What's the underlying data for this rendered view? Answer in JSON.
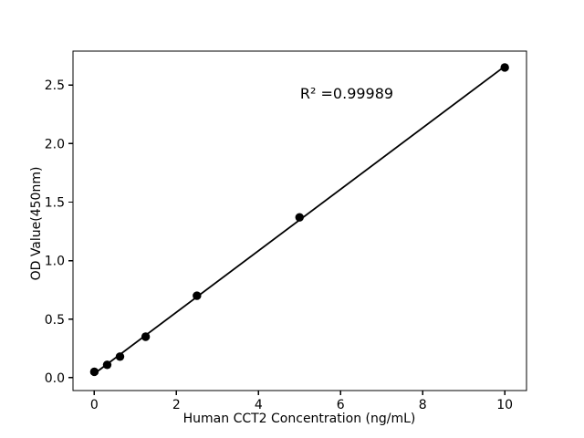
{
  "chart_data": {
    "type": "scatter",
    "title": "",
    "xlabel": "Human CCT2 Concentration (ng/mL)",
    "ylabel": "OD Value(450nm)",
    "annotation": "R² =0.99989",
    "r_squared": 0.99989,
    "x": [
      0,
      0.313,
      0.625,
      1.25,
      2.5,
      5,
      10
    ],
    "y": [
      0.05,
      0.11,
      0.18,
      0.35,
      0.7,
      1.37,
      2.65
    ],
    "fit_line": {
      "x": [
        0,
        10
      ],
      "y": [
        0.034,
        2.66
      ]
    },
    "x_ticks": [
      "0",
      "2",
      "4",
      "6",
      "8",
      "10"
    ],
    "y_ticks": [
      "0.0",
      "0.5",
      "1.0",
      "1.5",
      "2.0",
      "2.5"
    ],
    "xlim": [
      -0.52,
      10.53
    ],
    "ylim": [
      -0.11,
      2.79
    ],
    "grid": false,
    "legend": false,
    "marker_color": "#000000",
    "line_color": "#000000",
    "axis_color": "#000000",
    "background": "#ffffff"
  }
}
